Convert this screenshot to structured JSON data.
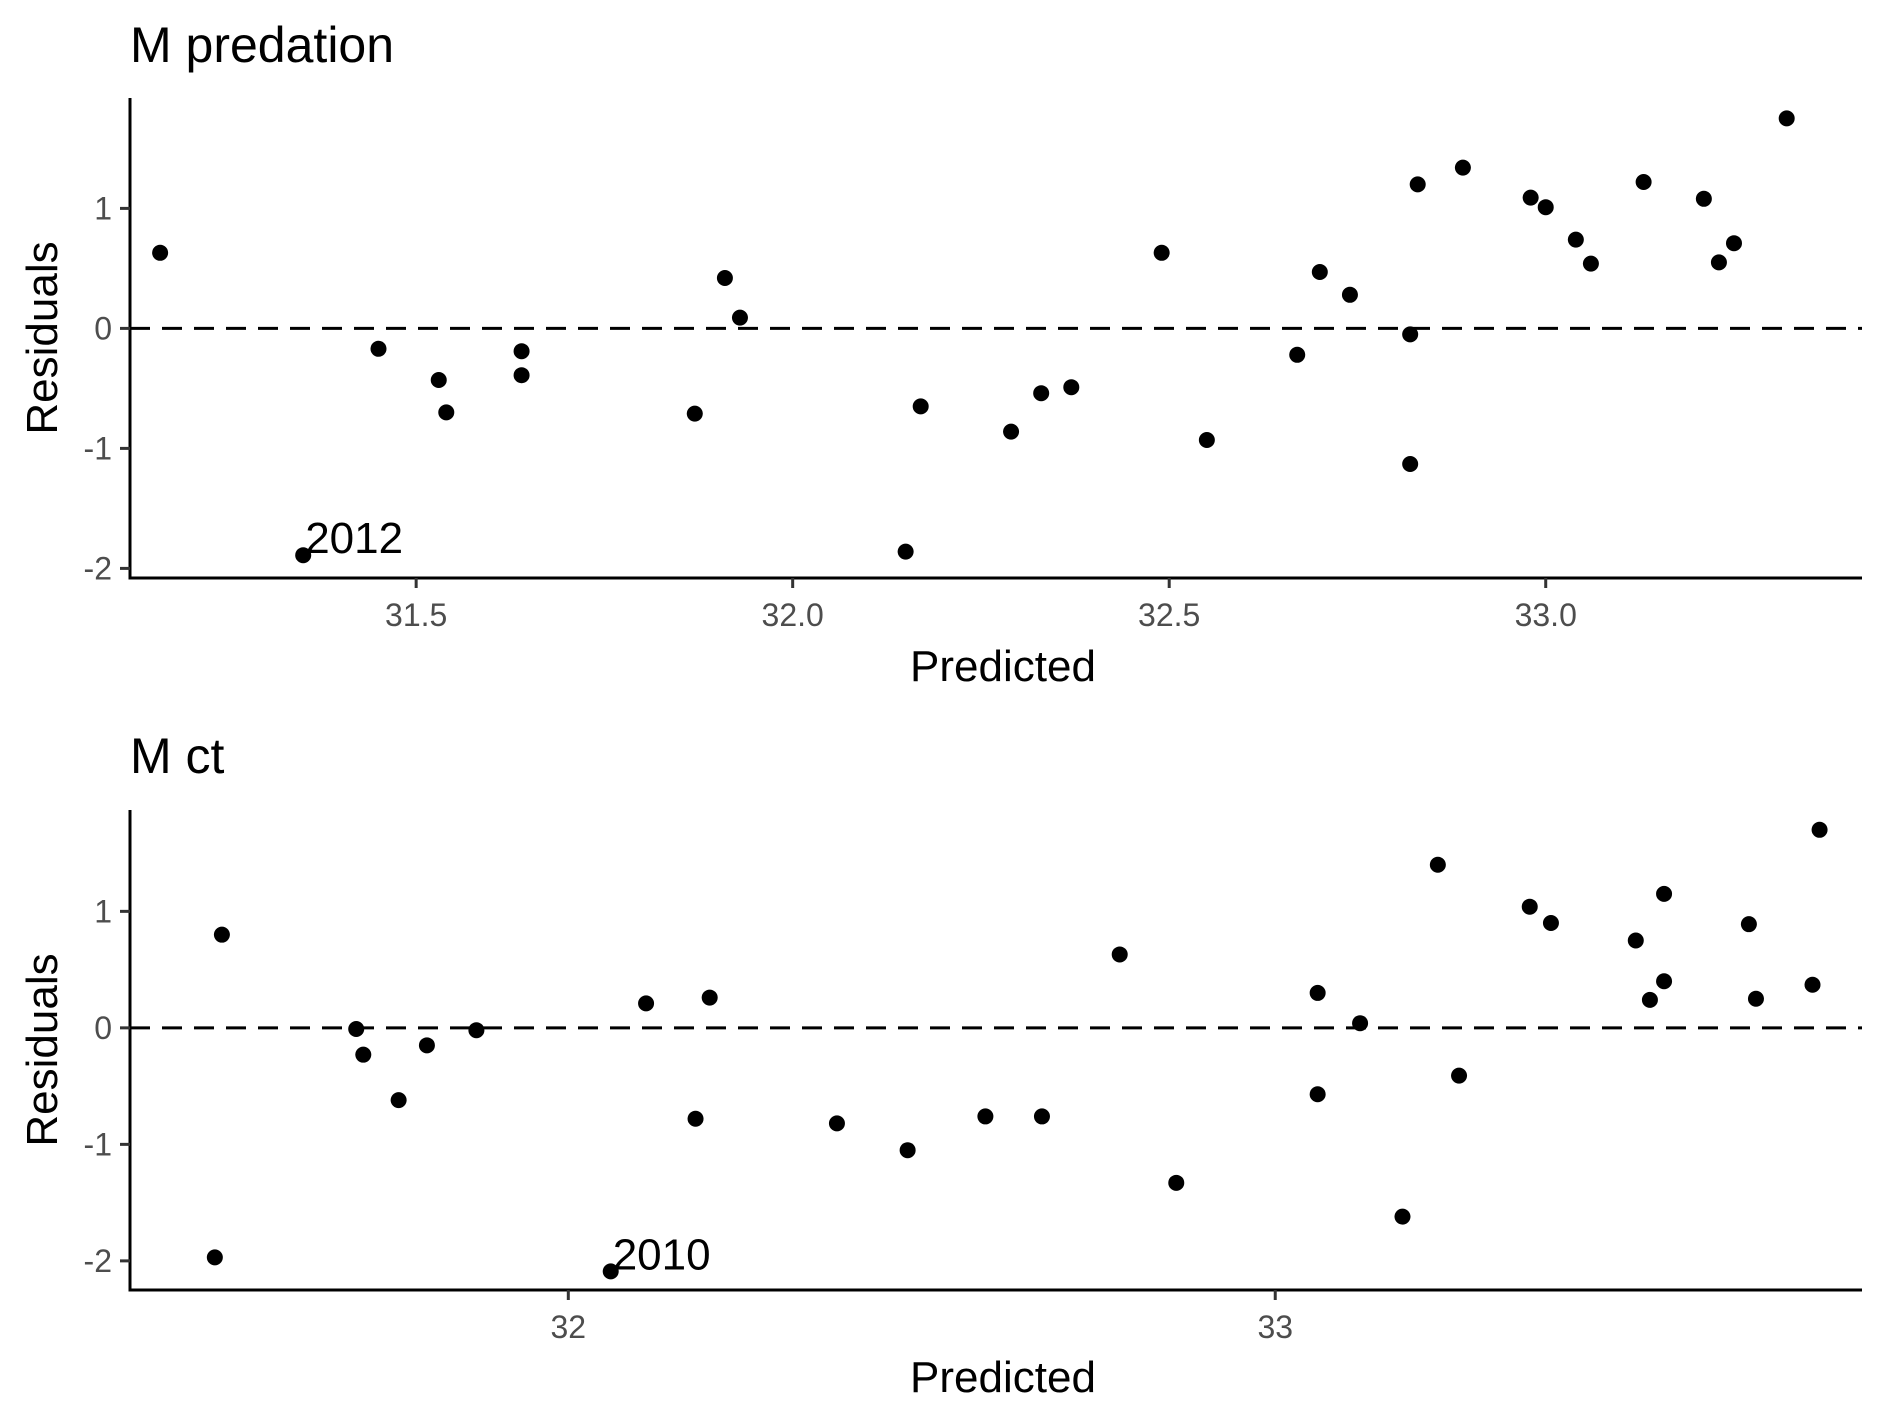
{
  "chart_data": [
    {
      "type": "scatter",
      "title": "M predation",
      "xlabel": "Predicted",
      "ylabel": "Residuals",
      "xlim": [
        31.12,
        33.42
      ],
      "ylim": [
        -2.08,
        1.92
      ],
      "xticks": [
        31.5,
        32.0,
        32.5,
        33.0
      ],
      "xtick_labels": [
        "31.5",
        "32.0",
        "32.5",
        "33.0"
      ],
      "yticks": [
        -2,
        -1,
        0,
        1
      ],
      "ytick_labels": [
        "-2",
        "-1",
        "0",
        "1"
      ],
      "reference_line": {
        "y": 0,
        "style": "dashed"
      },
      "grid": false,
      "annotations": [
        {
          "text": "2012",
          "x": 31.35,
          "y": -1.89
        }
      ],
      "points": [
        {
          "x": 31.16,
          "y": 0.63
        },
        {
          "x": 31.35,
          "y": -1.89
        },
        {
          "x": 31.45,
          "y": -0.17
        },
        {
          "x": 31.53,
          "y": -0.43
        },
        {
          "x": 31.54,
          "y": -0.7
        },
        {
          "x": 31.64,
          "y": -0.39
        },
        {
          "x": 31.64,
          "y": -0.19
        },
        {
          "x": 31.87,
          "y": -0.71
        },
        {
          "x": 31.91,
          "y": 0.42
        },
        {
          "x": 31.93,
          "y": 0.09
        },
        {
          "x": 32.15,
          "y": -1.86
        },
        {
          "x": 32.17,
          "y": -0.65
        },
        {
          "x": 32.29,
          "y": -0.86
        },
        {
          "x": 32.33,
          "y": -0.54
        },
        {
          "x": 32.37,
          "y": -0.49
        },
        {
          "x": 32.49,
          "y": 0.63
        },
        {
          "x": 32.55,
          "y": -0.93
        },
        {
          "x": 32.67,
          "y": -0.22
        },
        {
          "x": 32.7,
          "y": 0.47
        },
        {
          "x": 32.74,
          "y": 0.28
        },
        {
          "x": 32.82,
          "y": -1.13
        },
        {
          "x": 32.82,
          "y": -0.05
        },
        {
          "x": 32.83,
          "y": 1.2
        },
        {
          "x": 32.89,
          "y": 1.34
        },
        {
          "x": 32.98,
          "y": 1.09
        },
        {
          "x": 33.0,
          "y": 1.01
        },
        {
          "x": 33.04,
          "y": 0.74
        },
        {
          "x": 33.06,
          "y": 0.54
        },
        {
          "x": 33.13,
          "y": 1.22
        },
        {
          "x": 33.21,
          "y": 1.08
        },
        {
          "x": 33.23,
          "y": 0.55
        },
        {
          "x": 33.25,
          "y": 0.71
        },
        {
          "x": 33.32,
          "y": 1.75
        }
      ]
    },
    {
      "type": "scatter",
      "title": "M ct",
      "xlabel": "Predicted",
      "ylabel": "Residuals",
      "xlim": [
        31.38,
        33.83
      ],
      "ylim": [
        -2.25,
        1.87
      ],
      "xticks": [
        32,
        33
      ],
      "xtick_labels": [
        "32",
        "33"
      ],
      "yticks": [
        -2,
        -1,
        0,
        1
      ],
      "ytick_labels": [
        "-2",
        "-1",
        "0",
        "1"
      ],
      "reference_line": {
        "y": 0,
        "style": "dashed"
      },
      "grid": false,
      "annotations": [
        {
          "text": "2010",
          "x": 32.06,
          "y": -2.09
        }
      ],
      "points": [
        {
          "x": 31.5,
          "y": -1.97
        },
        {
          "x": 31.51,
          "y": 0.8
        },
        {
          "x": 31.7,
          "y": -0.01
        },
        {
          "x": 31.71,
          "y": -0.23
        },
        {
          "x": 31.76,
          "y": -0.62
        },
        {
          "x": 31.8,
          "y": -0.15
        },
        {
          "x": 31.87,
          "y": -0.02
        },
        {
          "x": 32.18,
          "y": -0.78
        },
        {
          "x": 32.2,
          "y": 0.26
        },
        {
          "x": 32.06,
          "y": -2.09
        },
        {
          "x": 32.11,
          "y": 0.21
        },
        {
          "x": 32.38,
          "y": -0.82
        },
        {
          "x": 32.48,
          "y": -1.05
        },
        {
          "x": 32.59,
          "y": -0.76
        },
        {
          "x": 32.67,
          "y": -0.76
        },
        {
          "x": 32.78,
          "y": 0.63
        },
        {
          "x": 32.86,
          "y": -1.33
        },
        {
          "x": 33.06,
          "y": 0.3
        },
        {
          "x": 33.06,
          "y": -0.57
        },
        {
          "x": 33.12,
          "y": 0.04
        },
        {
          "x": 33.18,
          "y": -1.62
        },
        {
          "x": 33.23,
          "y": 1.4
        },
        {
          "x": 33.26,
          "y": -0.41
        },
        {
          "x": 33.36,
          "y": 1.04
        },
        {
          "x": 33.39,
          "y": 0.9
        },
        {
          "x": 33.51,
          "y": 0.75
        },
        {
          "x": 33.53,
          "y": 0.24
        },
        {
          "x": 33.55,
          "y": 1.15
        },
        {
          "x": 33.55,
          "y": 0.4
        },
        {
          "x": 33.67,
          "y": 0.89
        },
        {
          "x": 33.68,
          "y": 0.25
        },
        {
          "x": 33.76,
          "y": 0.37
        },
        {
          "x": 33.77,
          "y": 1.7
        }
      ]
    }
  ]
}
